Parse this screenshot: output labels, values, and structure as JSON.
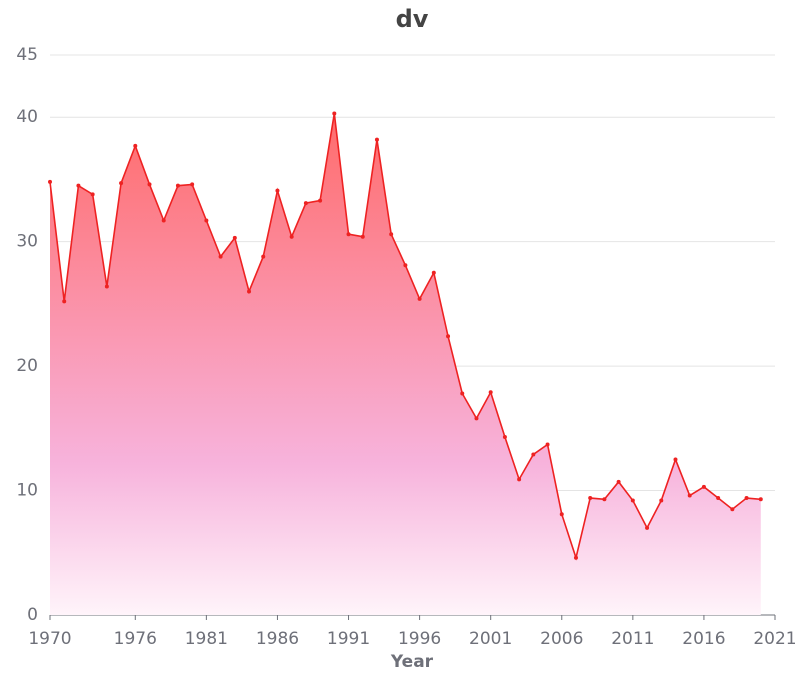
{
  "chart_data": {
    "type": "area",
    "title": "dv",
    "xlabel": "Year",
    "x": [
      1970,
      1971,
      1972,
      1973,
      1974,
      1975,
      1976,
      1977,
      1978,
      1979,
      1980,
      1981,
      1982,
      1983,
      1984,
      1985,
      1986,
      1987,
      1988,
      1989,
      1990,
      1991,
      1992,
      1993,
      1994,
      1995,
      1996,
      1997,
      1998,
      1999,
      2000,
      2001,
      2002,
      2003,
      2004,
      2005,
      2006,
      2007,
      2008,
      2009,
      2010,
      2011,
      2012,
      2013,
      2014,
      2015,
      2016,
      2017,
      2018,
      2019,
      2020
    ],
    "series": [
      {
        "name": "dv",
        "color": "#ee2222",
        "values": [
          34.8,
          25.2,
          34.5,
          33.8,
          26.4,
          34.7,
          37.7,
          34.6,
          31.7,
          34.5,
          34.6,
          31.7,
          28.8,
          30.3,
          26.0,
          28.8,
          34.1,
          30.4,
          33.1,
          33.3,
          40.3,
          30.6,
          30.4,
          38.2,
          30.6,
          28.1,
          25.4,
          27.5,
          22.4,
          17.8,
          15.8,
          17.9,
          14.3,
          10.9,
          12.9,
          13.7,
          8.1,
          4.6,
          9.4,
          9.3,
          10.7,
          9.2,
          7.0,
          9.2,
          12.5,
          9.6,
          10.3,
          9.4,
          8.5,
          9.4,
          9.3
        ]
      }
    ],
    "xlim": [
      1970,
      2021
    ],
    "xticks": [
      1970,
      1976,
      1981,
      1986,
      1991,
      1996,
      2001,
      2006,
      2011,
      2016,
      2021
    ],
    "ylim": [
      0,
      45
    ],
    "yticks": [
      0,
      10,
      20,
      30,
      40,
      45
    ],
    "grid": true
  }
}
